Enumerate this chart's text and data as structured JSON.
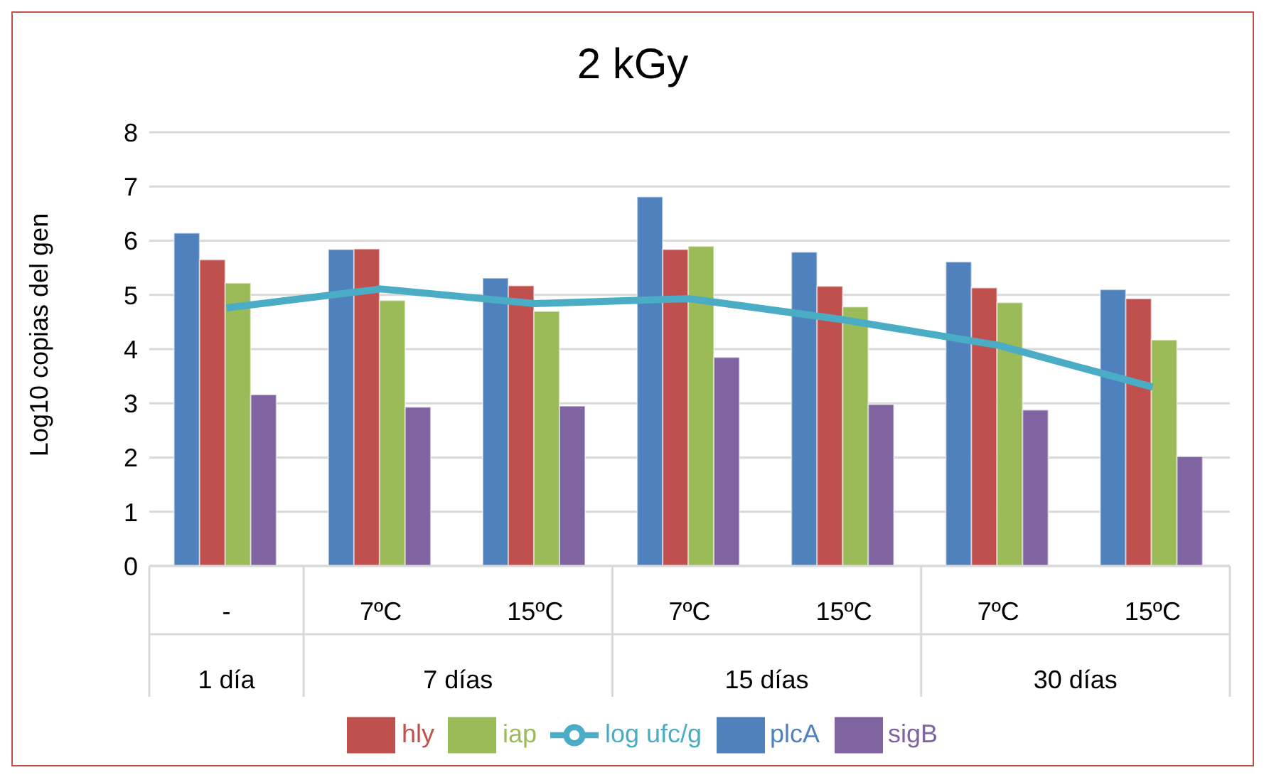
{
  "chart_data": {
    "type": "bar",
    "title": "2 kGy",
    "ylabel": "Log10 copias del gen",
    "categories": [
      "-",
      "7ºC",
      "15ºC",
      "7ºC",
      "15ºC",
      "7ºC",
      "15ºC"
    ],
    "annotations": [
      "1 día",
      "7 días",
      "15 días",
      "30 días"
    ],
    "series": [
      {
        "name": "plcA",
        "color": "#4f81bd",
        "values": [
          6.14,
          5.84,
          5.31,
          6.81,
          5.79,
          5.61,
          5.1
        ]
      },
      {
        "name": "hly",
        "color": "#c0504d",
        "values": [
          5.65,
          5.85,
          5.17,
          5.84,
          5.16,
          5.13,
          4.93
        ]
      },
      {
        "name": "iap",
        "color": "#9bbb59",
        "values": [
          5.22,
          4.9,
          4.7,
          5.9,
          4.78,
          4.86,
          4.17
        ]
      },
      {
        "name": "sigB",
        "color": "#8064a2",
        "values": [
          3.16,
          2.93,
          2.95,
          3.85,
          2.98,
          2.88,
          2.02
        ]
      },
      {
        "name": "log ufc/g",
        "type": "line",
        "color": "#4bacc6",
        "values": [
          4.76,
          5.11,
          4.84,
          4.93,
          4.54,
          4.07,
          3.3
        ]
      }
    ],
    "ylim": [
      0,
      8
    ],
    "yticks": [
      0,
      1,
      2,
      3,
      4,
      5,
      6,
      7,
      8
    ],
    "grid": "y",
    "legend": "bottom",
    "marker": "none"
  }
}
